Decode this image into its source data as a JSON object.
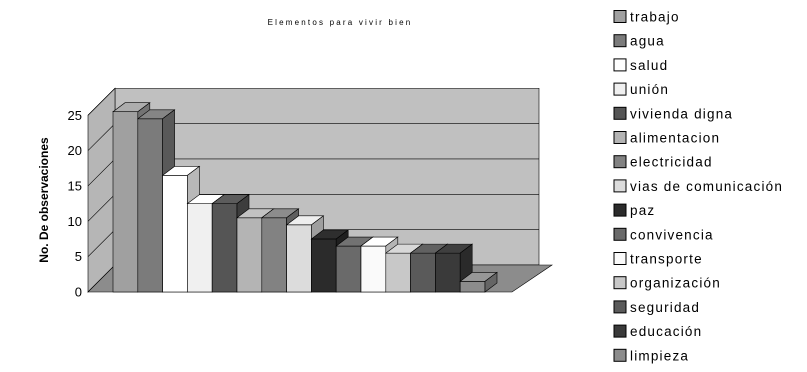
{
  "chart_data": {
    "type": "bar",
    "title": "Elementos para vivir bien",
    "xlabel": "",
    "ylabel": "No. De observaciones",
    "ylim": [
      0,
      25
    ],
    "yticks": [
      "0",
      "5",
      "10",
      "15",
      "20",
      "25"
    ],
    "grid": true,
    "legend_position": "right",
    "three_d": true,
    "categories": [
      "trabajo",
      "agua",
      "salud",
      "unión",
      "vivienda digna",
      "alimentacion",
      "electricidad",
      "vias de comunicación",
      "paz",
      "convivencia",
      "transporte",
      "organización",
      "seguridad",
      "educación",
      "limpieza"
    ],
    "values": [
      25.5,
      24.5,
      16.5,
      12.5,
      12.5,
      10.5,
      10.5,
      9.5,
      7.5,
      6.5,
      6.5,
      5.5,
      5.5,
      5.5,
      1.5
    ],
    "colors": [
      "#a0a0a0",
      "#7b7b7b",
      "#ffffff",
      "#f0f0f0",
      "#555555",
      "#b4b4b4",
      "#828282",
      "#dcdcdc",
      "#2b2b2b",
      "#6a6a6a",
      "#fafafa",
      "#c8c8c8",
      "#5a5a5a",
      "#3a3a3a",
      "#8c8c8c"
    ]
  }
}
